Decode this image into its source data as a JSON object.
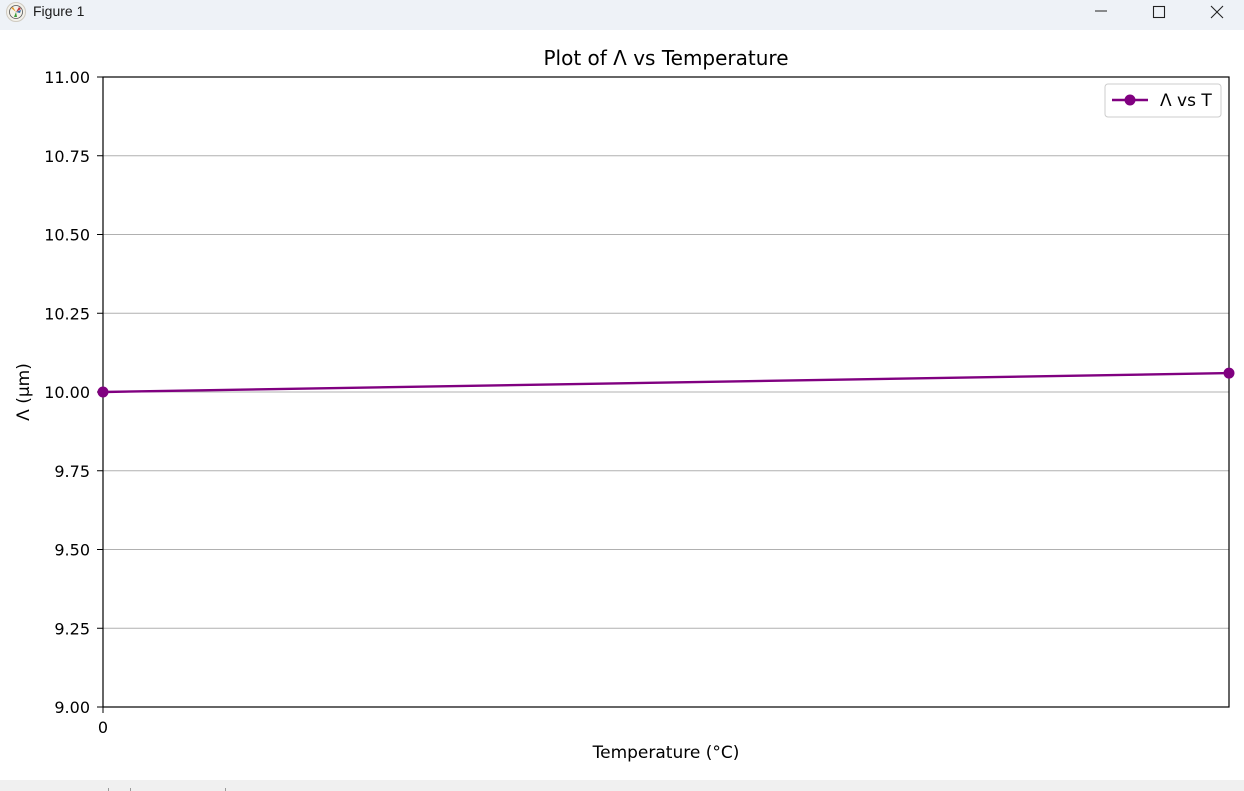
{
  "window": {
    "title": "Figure 1",
    "icon": "matplotlib-icon",
    "controls": [
      "minimize-icon",
      "maximize-icon",
      "close-icon"
    ]
  },
  "chart_data": {
    "type": "line",
    "title": "Plot of Λ vs Temperature",
    "xlabel": "Temperature (°C)",
    "ylabel": "Λ (μm)",
    "x_ticks": [
      "0"
    ],
    "y_ticks": [
      "9.00",
      "9.25",
      "9.50",
      "9.75",
      "10.00",
      "10.25",
      "10.50",
      "10.75",
      "11.00"
    ],
    "ylim": [
      9.0,
      11.0
    ],
    "grid": "horizontal",
    "legend_position": "top-right",
    "series": [
      {
        "name": "Λ vs T",
        "color": "#800080",
        "marker": "circle",
        "points": [
          {
            "x": "start",
            "y": 10.0
          },
          {
            "x": "end",
            "y": 10.06
          }
        ]
      }
    ]
  }
}
